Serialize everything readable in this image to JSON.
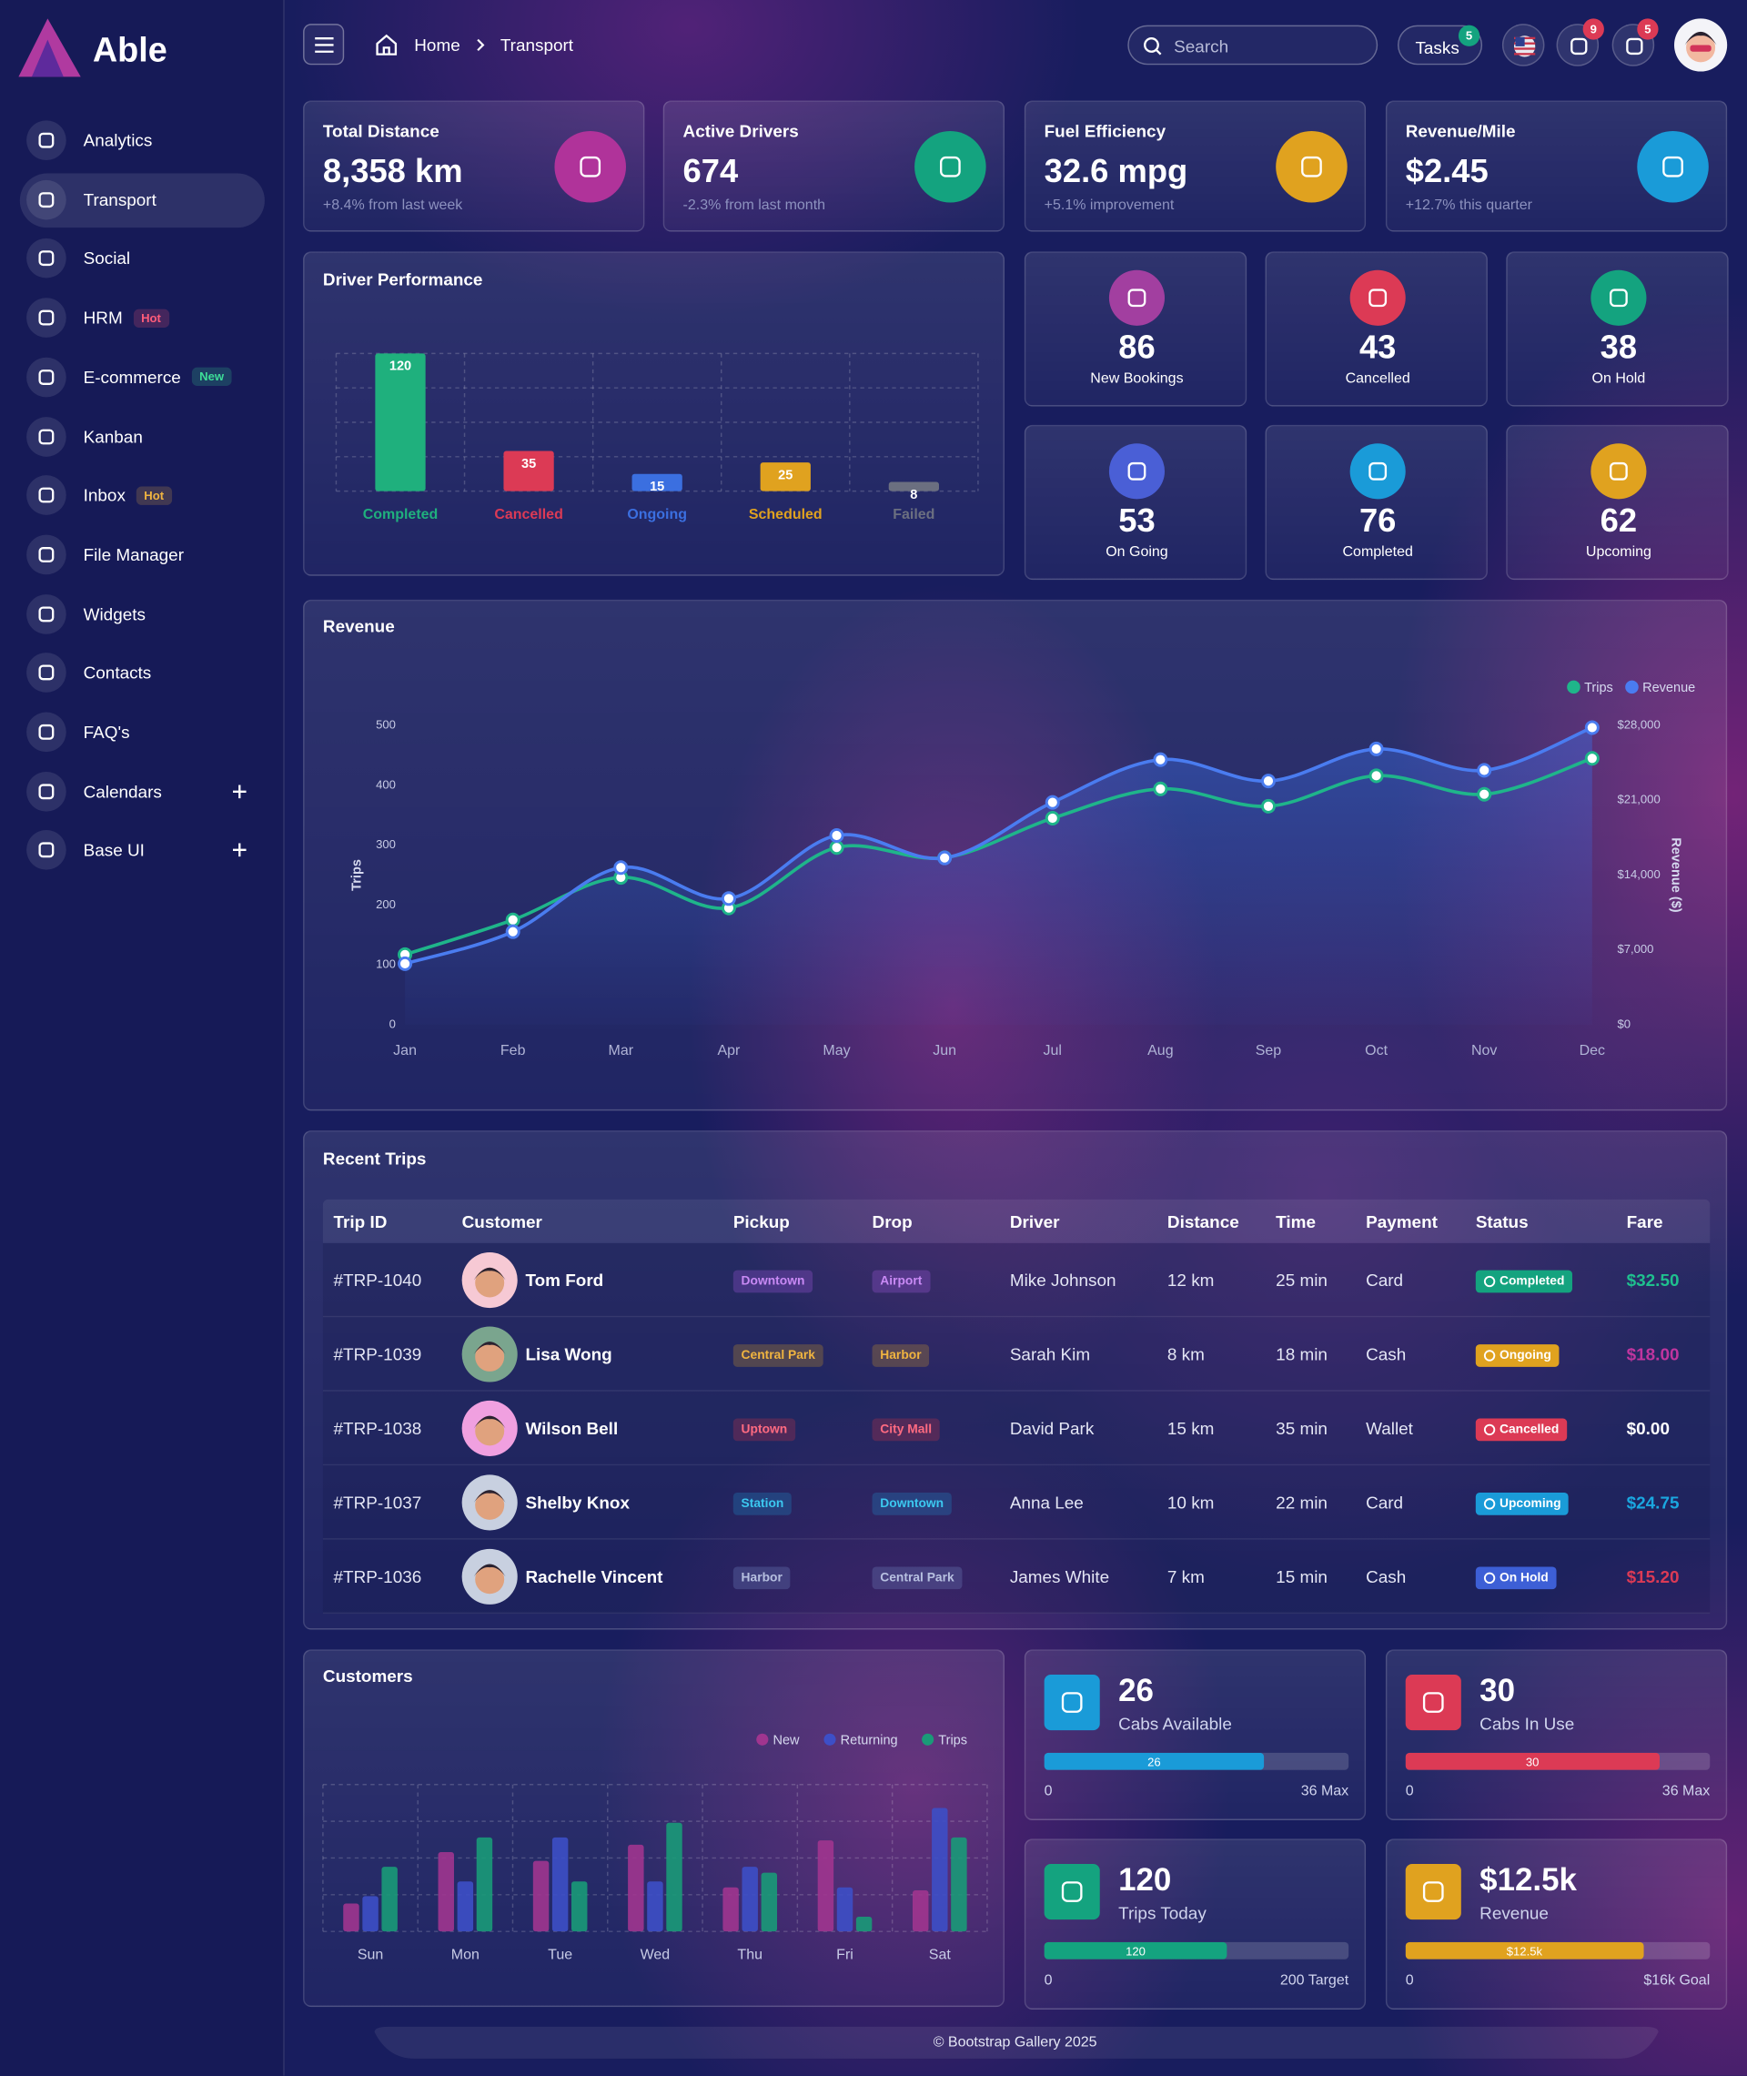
{
  "sidebar": {
    "brand": "Able",
    "menu": [
      {
        "label": "Analytics"
      },
      {
        "label": "Transport",
        "active": true
      },
      {
        "label": "Social"
      },
      {
        "label": "HRM",
        "badge": "Hot",
        "badge_color": "#ff5c7a"
      },
      {
        "label": "E-commerce",
        "badge": "New",
        "badge_color": "#3ddc97"
      },
      {
        "label": "Kanban"
      },
      {
        "label": "Inbox",
        "badge": "Hot",
        "badge_color": "#f0b440"
      },
      {
        "label": "File Manager"
      },
      {
        "label": "Widgets"
      },
      {
        "label": "Contacts"
      },
      {
        "label": "FAQ's"
      },
      {
        "label": "Calendars",
        "expandable": true
      },
      {
        "label": "Base UI",
        "expandable": true
      }
    ]
  },
  "header": {
    "breadcrumb": [
      "Home",
      "Transport"
    ],
    "search_placeholder": "Search",
    "tasks": {
      "label": "Tasks",
      "badge": 5
    },
    "cart_badge": 9,
    "notification_badge": 5
  },
  "stats": [
    {
      "title": "Total Distance",
      "value": "8,358 km",
      "note": "+8.4% from last week"
    },
    {
      "title": "Active Drivers",
      "value": "674",
      "note": "-2.3% from last month"
    },
    {
      "title": "Fuel Efficiency",
      "value": "32.6 mpg",
      "note": "+5.1% improvement"
    },
    {
      "title": "Revenue/Mile",
      "value": "$2.45",
      "note": "+12.7% this quarter"
    }
  ],
  "driver_performance": {
    "type": "bar",
    "title": "Driver Performance",
    "categories": [
      "Completed",
      "Cancelled",
      "Ongoing",
      "Scheduled",
      "Failed"
    ],
    "values": [
      120,
      35,
      15,
      25,
      8
    ],
    "colors": [
      "#1fb07d",
      "#dc3a55",
      "#3b6fe0",
      "#e0a21f",
      "#6b6f80"
    ],
    "ylim": [
      0,
      120
    ]
  },
  "status_cards": [
    {
      "value": 86,
      "label": "New Bookings"
    },
    {
      "value": 43,
      "label": "Cancelled"
    },
    {
      "value": 38,
      "label": "On Hold"
    },
    {
      "value": 53,
      "label": "On Going"
    },
    {
      "value": 76,
      "label": "Completed"
    },
    {
      "value": 62,
      "label": "Upcoming"
    }
  ],
  "revenue": {
    "type": "line",
    "title": "Revenue",
    "categories": [
      "Jan",
      "Feb",
      "Mar",
      "Apr",
      "May",
      "Jun",
      "Jul",
      "Aug",
      "Sep",
      "Oct",
      "Nov",
      "Dec"
    ],
    "series": [
      {
        "name": "Trips",
        "color": "#1fb58a",
        "values": [
          117,
          175,
          246,
          195,
          296,
          279,
          345,
          394,
          365,
          416,
          385,
          445
        ]
      },
      {
        "name": "Revenue",
        "color": "#4a7cf0",
        "axis": "y2",
        "values": [
          5700,
          8700,
          14700,
          11800,
          17700,
          15600,
          20800,
          24800,
          22800,
          25800,
          23800,
          27800
        ]
      }
    ],
    "ylabel": "Trips",
    "y2label": "Revenue ($)",
    "ylim": [
      0,
      500
    ],
    "yticks": [
      0,
      100,
      200,
      300,
      400,
      500
    ],
    "y2lim": [
      0,
      28000
    ],
    "y2ticks": [
      {
        "value": 0,
        "label": "$0"
      },
      {
        "value": 7000,
        "label": "$7,000"
      },
      {
        "value": 14000,
        "label": "$14,000"
      },
      {
        "value": 21000,
        "label": "$21,000"
      },
      {
        "value": 28000,
        "label": "$28,000"
      }
    ],
    "legend": "top-right"
  },
  "recent_trips": {
    "title": "Recent Trips",
    "columns": [
      "Trip ID",
      "Customer",
      "Pickup",
      "Drop",
      "Driver",
      "Distance",
      "Time",
      "Payment",
      "Status",
      "Fare"
    ],
    "rows": [
      [
        "#TRP-1040",
        "Tom Ford",
        "Downtown",
        "Airport",
        "Mike Johnson",
        "12 km",
        "25 min",
        "Card",
        "Completed",
        "$32.50"
      ],
      [
        "#TRP-1039",
        "Lisa Wong",
        "Central Park",
        "Harbor",
        "Sarah Kim",
        "8 km",
        "18 min",
        "Cash",
        "Ongoing",
        "$18.00"
      ],
      [
        "#TRP-1038",
        "Wilson Bell",
        "Uptown",
        "City Mall",
        "David Park",
        "15 km",
        "35 min",
        "Wallet",
        "Cancelled",
        "$0.00"
      ],
      [
        "#TRP-1037",
        "Shelby Knox",
        "Station",
        "Downtown",
        "Anna Lee",
        "10 km",
        "22 min",
        "Card",
        "Upcoming",
        "$24.75"
      ],
      [
        "#TRP-1036",
        "Rachelle Vincent",
        "Harbor",
        "Central Park",
        "James White",
        "7 km",
        "15 min",
        "Cash",
        "On Hold",
        "$15.20"
      ]
    ]
  },
  "customers": {
    "type": "bar",
    "title": "Customers",
    "categories": [
      "Sun",
      "Mon",
      "Tue",
      "Wed",
      "Thu",
      "Fri",
      "Sat"
    ],
    "series": [
      {
        "name": "New",
        "color": "#a0358f",
        "values": [
          19,
          54,
          48,
          59,
          30,
          62,
          28
        ]
      },
      {
        "name": "Returning",
        "color": "#3d4fc7",
        "values": [
          24,
          34,
          64,
          34,
          44,
          30,
          84
        ]
      },
      {
        "name": "Trips",
        "color": "#1a9a78",
        "values": [
          44,
          64,
          34,
          74,
          40,
          10,
          64
        ]
      }
    ],
    "ylim": [
      0,
      100
    ]
  },
  "gauges": [
    {
      "value": 26,
      "label": "Cabs Available",
      "min": 0,
      "max": 36,
      "max_label": "36 Max",
      "color": "#1a9bd8"
    },
    {
      "value": 30,
      "label": "Cabs In Use",
      "min": 0,
      "max": 36,
      "max_label": "36 Max",
      "color": "#dc3a55"
    },
    {
      "value": 120,
      "label": "Trips Today",
      "min": 0,
      "max": 200,
      "max_label": "200 Target",
      "color": "#14a37f"
    },
    {
      "value": 12500,
      "value_label": "$12.5k",
      "label": "Revenue",
      "min": 0,
      "max": 16000,
      "max_label": "$16k Goal",
      "color": "#e0a21f"
    }
  ],
  "footer": "© Bootstrap Gallery 2025"
}
